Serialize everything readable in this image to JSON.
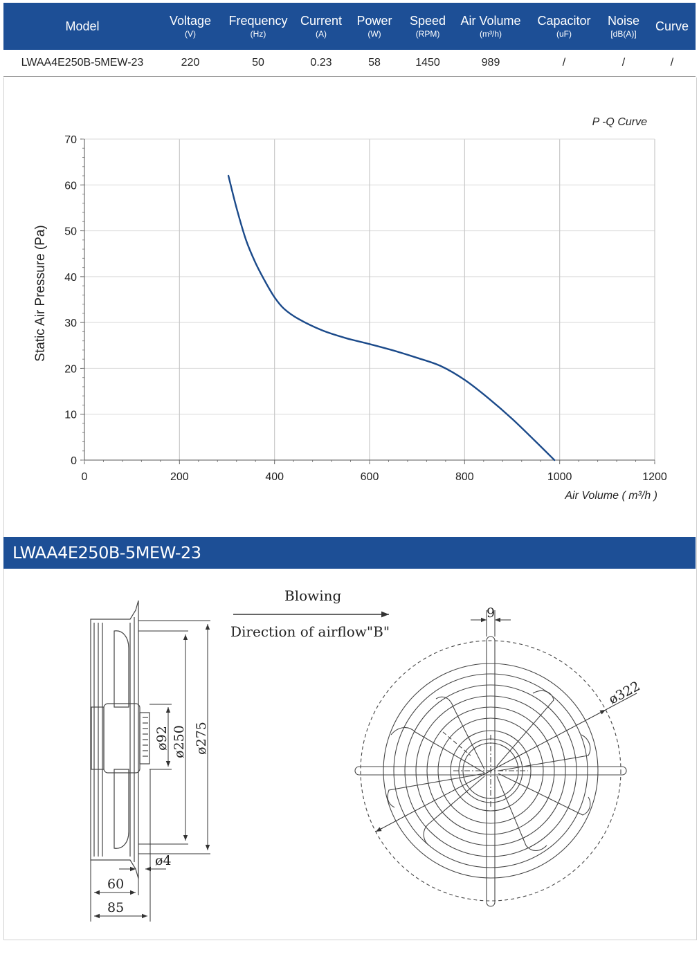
{
  "spec_table": {
    "headers": [
      {
        "label": "Model",
        "unit": ""
      },
      {
        "label": "Voltage",
        "unit": "(V)"
      },
      {
        "label": "Frequency",
        "unit": "(Hz)"
      },
      {
        "label": "Current",
        "unit": "(A)"
      },
      {
        "label": "Power",
        "unit": "(W)"
      },
      {
        "label": "Speed",
        "unit": "(RPM)"
      },
      {
        "label": "Air Volume",
        "unit": "(m³/h)"
      },
      {
        "label": "Capacitor",
        "unit": "(uF)"
      },
      {
        "label": "Noise",
        "unit": "[dB(A)]"
      },
      {
        "label": "Curve",
        "unit": ""
      }
    ],
    "row": [
      "LWAA4E250B-5MEW-23",
      "220",
      "50",
      "0.23",
      "58",
      "1450",
      "989",
      "/",
      "/",
      "/"
    ]
  },
  "chart_data": {
    "type": "line",
    "title": "P -Q Curve",
    "xlabel": "Air Volume ( m³/h )",
    "ylabel": "Static Air Pressure  (Pa)",
    "xlim": [
      0,
      1200
    ],
    "ylim": [
      0,
      70
    ],
    "xticks": [
      "0",
      "200",
      "400",
      "600",
      "800",
      "1000",
      "1200"
    ],
    "yticks": [
      "0",
      "10",
      "20",
      "30",
      "40",
      "50",
      "60",
      "70"
    ],
    "grid": true,
    "legend": "none",
    "series": [
      {
        "x": [
          303,
          320,
          340,
          360,
          380,
          400,
          420,
          450,
          500,
          550,
          600,
          650,
          700,
          750,
          800,
          850,
          900,
          950,
          989
        ],
        "y": [
          62,
          55,
          48,
          43,
          39,
          35.5,
          33,
          30.8,
          28.3,
          26.6,
          25.3,
          23.9,
          22.3,
          20.5,
          17.5,
          13.5,
          9,
          4,
          0
        ],
        "color": "#1b4a8a"
      }
    ]
  },
  "banner": {
    "title": "LWAA4E250B-5MEW-23"
  },
  "drawing": {
    "blowing": "Blowing",
    "direction": "Direction of airflow\"B\"",
    "dims": {
      "d92": "ø92",
      "d250": "ø250",
      "d275": "ø275",
      "d4": "ø4",
      "w60": "60",
      "w85": "85",
      "w9": "9",
      "d322": "ø322"
    }
  },
  "colors": {
    "header_blue": "#1d4f96",
    "curve_blue": "#1b4a8a"
  }
}
